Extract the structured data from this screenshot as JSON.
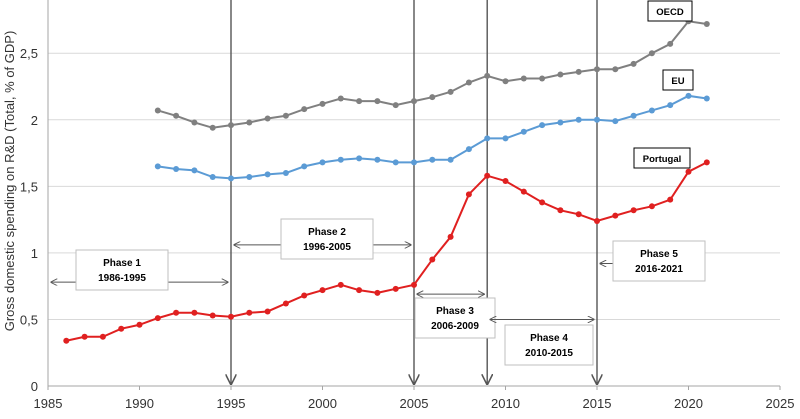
{
  "chart_data": {
    "type": "line",
    "ylabel": "Gross domestic spending on R&D (Total, % of GDP)",
    "xlim": [
      1985,
      2025
    ],
    "ylim": [
      0,
      2.9
    ],
    "x_ticks": [
      "1985",
      "1990",
      "1995",
      "2000",
      "2005",
      "2010",
      "2015",
      "2020",
      "2025"
    ],
    "y_ticks": [
      "0",
      "0,5",
      "1",
      "1,5",
      "2",
      "2,5"
    ],
    "grid": "horizontal",
    "series": [
      {
        "name": "OECD",
        "color": "#808080",
        "x": [
          1991,
          1992,
          1993,
          1994,
          1995,
          1996,
          1997,
          1998,
          1999,
          2000,
          2001,
          2002,
          2003,
          2004,
          2005,
          2006,
          2007,
          2008,
          2009,
          2010,
          2011,
          2012,
          2013,
          2014,
          2015,
          2016,
          2017,
          2018,
          2019,
          2020,
          2021
        ],
        "y": [
          2.07,
          2.03,
          1.98,
          1.94,
          1.96,
          1.98,
          2.01,
          2.03,
          2.08,
          2.12,
          2.16,
          2.14,
          2.14,
          2.11,
          2.14,
          2.17,
          2.21,
          2.28,
          2.33,
          2.29,
          2.31,
          2.31,
          2.34,
          2.36,
          2.38,
          2.38,
          2.42,
          2.5,
          2.57,
          2.74,
          2.72
        ]
      },
      {
        "name": "EU",
        "color": "#5b9bd5",
        "x": [
          1991,
          1992,
          1993,
          1994,
          1995,
          1996,
          1997,
          1998,
          1999,
          2000,
          2001,
          2002,
          2003,
          2004,
          2005,
          2006,
          2007,
          2008,
          2009,
          2010,
          2011,
          2012,
          2013,
          2014,
          2015,
          2016,
          2017,
          2018,
          2019,
          2020,
          2021
        ],
        "y": [
          1.65,
          1.63,
          1.62,
          1.57,
          1.56,
          1.57,
          1.59,
          1.6,
          1.65,
          1.68,
          1.7,
          1.71,
          1.7,
          1.68,
          1.68,
          1.7,
          1.7,
          1.78,
          1.86,
          1.86,
          1.91,
          1.96,
          1.98,
          2.0,
          2.0,
          1.99,
          2.03,
          2.07,
          2.11,
          2.18,
          2.16
        ]
      },
      {
        "name": "Portugal",
        "color": "#e02020",
        "x": [
          1986,
          1987,
          1988,
          1989,
          1990,
          1991,
          1992,
          1993,
          1994,
          1995,
          1996,
          1997,
          1998,
          1999,
          2000,
          2001,
          2002,
          2003,
          2004,
          2005,
          2006,
          2007,
          2008,
          2009,
          2010,
          2011,
          2012,
          2013,
          2014,
          2015,
          2016,
          2017,
          2018,
          2019,
          2020,
          2021
        ],
        "y": [
          0.34,
          0.37,
          0.37,
          0.43,
          0.46,
          0.51,
          0.55,
          0.55,
          0.53,
          0.52,
          0.55,
          0.56,
          0.62,
          0.68,
          0.72,
          0.76,
          0.72,
          0.7,
          0.73,
          0.76,
          0.95,
          1.12,
          1.44,
          1.58,
          1.54,
          1.46,
          1.38,
          1.32,
          1.29,
          1.24,
          1.28,
          1.32,
          1.35,
          1.4,
          1.61,
          1.68
        ]
      }
    ],
    "phase_lines": [
      1995,
      2005,
      2009,
      2015
    ],
    "phases": [
      {
        "line1": "Phase 1",
        "line2": "1986-1995",
        "from": 1985,
        "to": 1995,
        "arrow_y": 0.78
      },
      {
        "line1": "Phase  2",
        "line2": "1996-2005",
        "from": 1995,
        "to": 2005,
        "arrow_y": 1.06
      },
      {
        "line1": "Phase  3",
        "line2": "2006-2009",
        "from": 2005,
        "to": 2009,
        "arrow_y": 0.69
      },
      {
        "line1": "Phase  4",
        "line2": "2010-2015",
        "from": 2009,
        "to": 2015,
        "arrow_y": 0.5
      },
      {
        "line1": "Phase  5",
        "line2": "2016-2021",
        "from": 2015,
        "to": 2021,
        "arrow_y": 0.92
      }
    ]
  }
}
